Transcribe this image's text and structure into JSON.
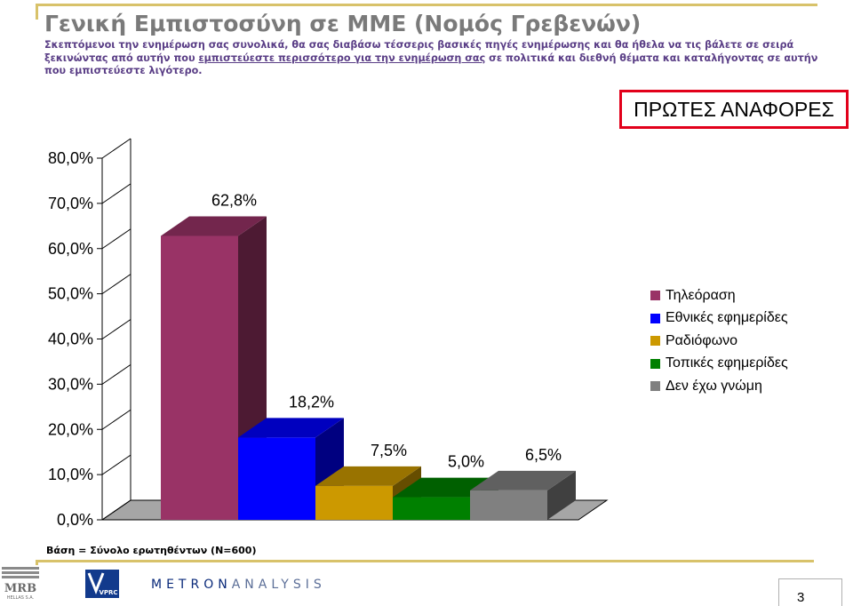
{
  "header": {
    "title": "Γενική Εμπιστοσύνη σε ΜΜΕ (Νομός Γρεβενών)",
    "subtitle_part1": "Σκεπτόμενοι την ενημέρωση σας συνολικά, θα σας διαβάσω τέσσερις βασικές πηγές ενημέρωσης και θα ήθελα να τις βάλετε σε σειρά ξεκινώντας από αυτήν που ",
    "subtitle_underlined": "εμπιστεύεστε περισσότερο για την ενημέρωση σας",
    "subtitle_part2": " σε πολιτικά και διεθνή θέματα και καταλήγοντας σε αυτήν που εμπιστεύεστε λιγότερο."
  },
  "badge": {
    "label": "ΠΡΩΤΕΣ ΑΝΑΦΟΡΕΣ"
  },
  "chart_data": {
    "type": "bar",
    "style": "3d",
    "categories": [
      "Τηλεόραση",
      "Εθνικές εφημερίδες",
      "Ραδιόφωνο",
      "Τοπικές εφημερίδες",
      "Δεν έχω γνώμη"
    ],
    "values": [
      62.8,
      18.2,
      7.5,
      5.0,
      6.5
    ],
    "value_labels": [
      "62,8%",
      "18,2%",
      "7,5%",
      "5,0%",
      "6,5%"
    ],
    "colors": [
      "#993366",
      "#0000ff",
      "#cc9900",
      "#008000",
      "#808080"
    ],
    "ylim": [
      0,
      80
    ],
    "yticks": [
      "0,0%",
      "10,0%",
      "20,0%",
      "30,0%",
      "40,0%",
      "50,0%",
      "60,0%",
      "70,0%",
      "80,0%"
    ],
    "grid": false,
    "legend_position": "right",
    "title": "",
    "xlabel": "",
    "ylabel": ""
  },
  "footer": {
    "base_note": "Βάση = Σύνολο ερωτηθέντων (N=600)",
    "logo_mrb": "MRB",
    "logo_mrb_sub": "HELLAS S.A.",
    "logo_vprc": "VPRC",
    "logo_metron_dark": "METRON",
    "logo_metron_light": "ANALYSIS",
    "page_number": "3"
  }
}
